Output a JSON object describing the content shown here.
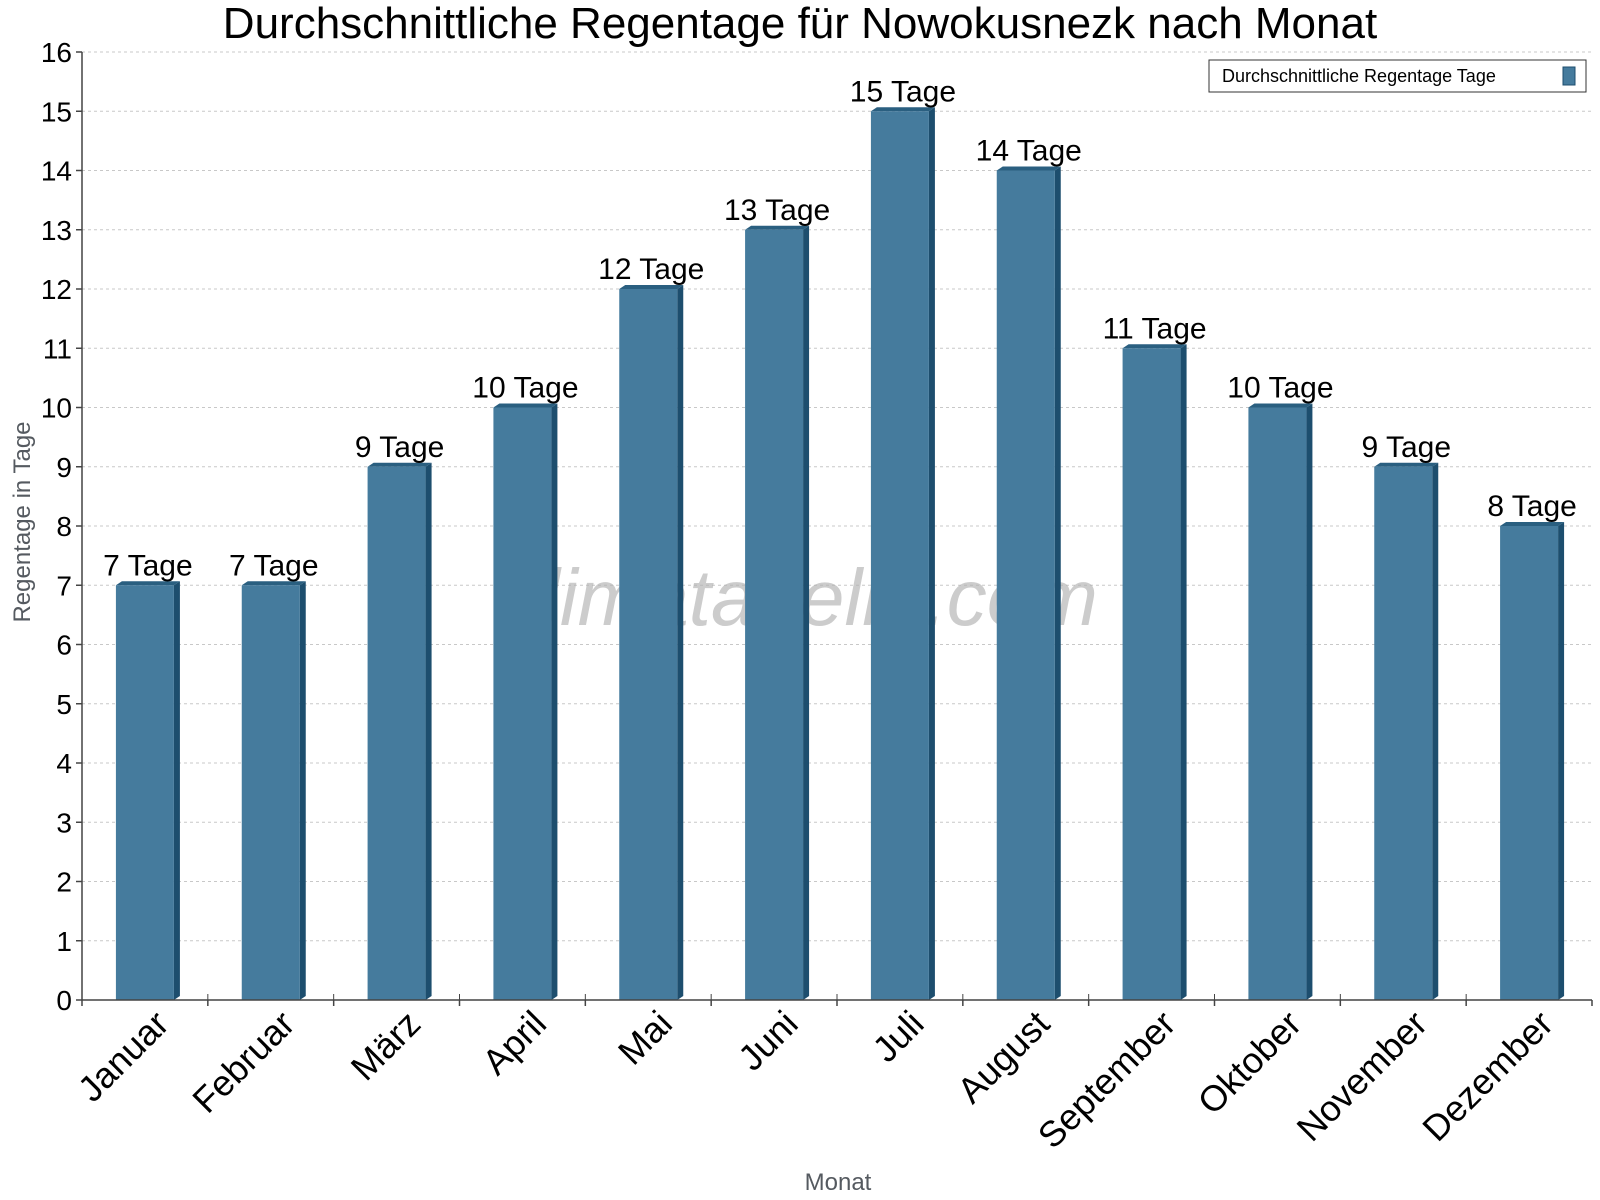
{
  "chart_data": {
    "type": "bar",
    "title": "Durchschnittliche Regentage für Nowokusnezk nach Monat",
    "xlabel": "Monat",
    "ylabel": "Regentage in Tage",
    "ylim": [
      0,
      16
    ],
    "yticks": [
      0,
      1,
      2,
      3,
      4,
      5,
      6,
      7,
      8,
      9,
      10,
      11,
      12,
      13,
      14,
      15,
      16
    ],
    "grid": true,
    "legend_position": "top-right",
    "categories": [
      "Januar",
      "Februar",
      "März",
      "April",
      "Mai",
      "Juni",
      "Juli",
      "August",
      "September",
      "Oktober",
      "November",
      "Dezember"
    ],
    "series": [
      {
        "name": "Durchschnittliche Regentage Tage",
        "color": "#457b9d",
        "values": [
          7,
          7,
          9,
          10,
          12,
          13,
          15,
          14,
          11,
          10,
          9,
          8
        ],
        "labels": [
          "7 Tage",
          "7 Tage",
          "9 Tage",
          "10 Tage",
          "12 Tage",
          "13 Tage",
          "15 Tage",
          "14 Tage",
          "11 Tage",
          "10 Tage",
          "9 Tage",
          "8 Tage"
        ]
      }
    ]
  },
  "watermark": "klimatabelle.com",
  "colors": {
    "bar_front": "#457b9d",
    "bar_side": "#1d4e6e",
    "bar_top": "#2a5f80",
    "grid": "#c8c8c8",
    "axis": "#444444"
  }
}
